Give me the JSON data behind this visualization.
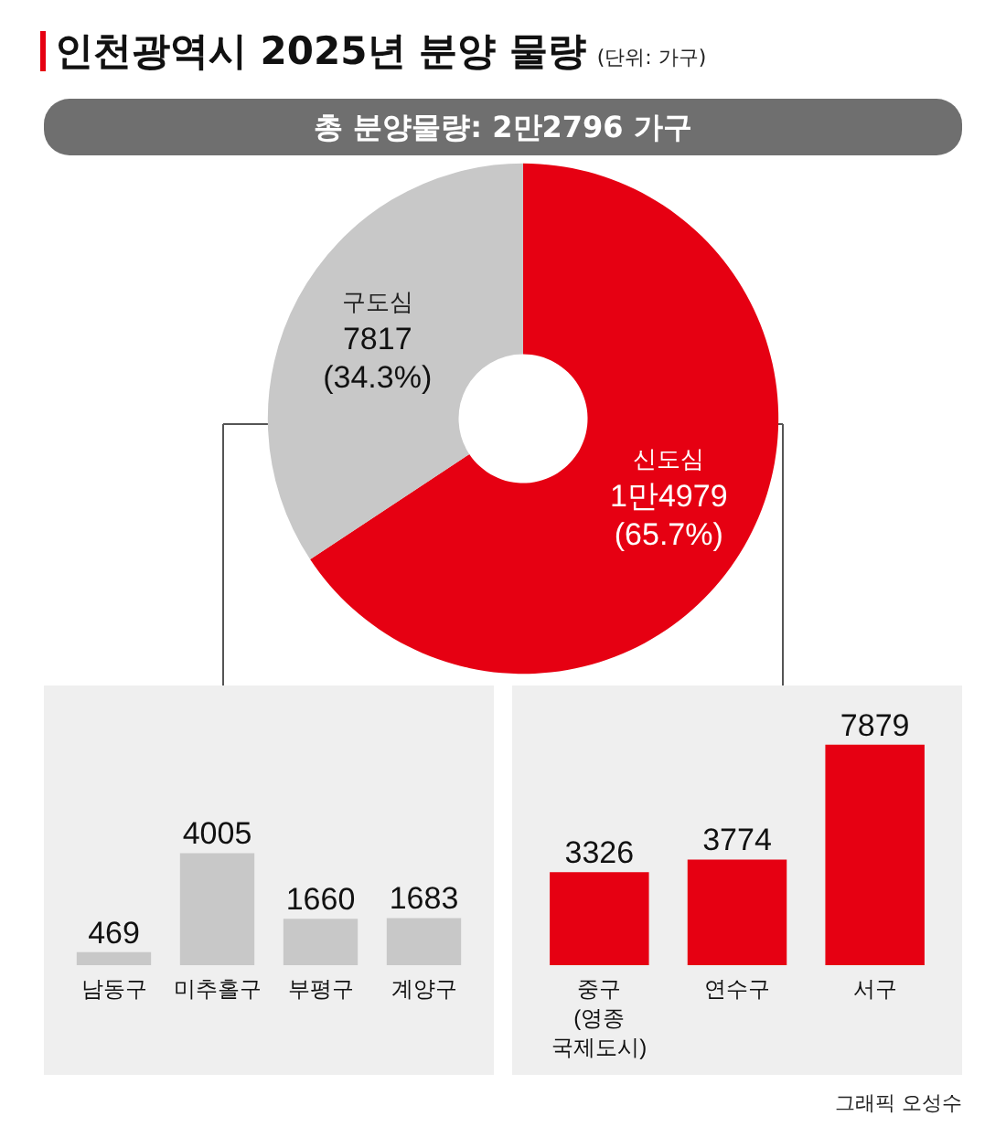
{
  "chart_data": [
    {
      "type": "donut",
      "title": "인천광역시 2025년 분양 물량",
      "subtitle": "(단위: 가구)",
      "annotations": [
        "총 분양물량: 2만2796 가구"
      ],
      "categories": [
        "신도심",
        "구도심"
      ],
      "values": [
        65.7,
        34.3
      ],
      "colors": [
        "#e60012",
        "#c8c8c8"
      ],
      "value_labels": [
        "1만4979\n(65.7%)",
        "7817\n(34.3%)"
      ],
      "legend": false
    },
    {
      "type": "bar",
      "categories": [
        "남동구",
        "미추홀구",
        "부평구",
        "계양구"
      ],
      "values": [
        469,
        4005,
        1660,
        1683
      ],
      "color": "#c8c8c8",
      "data_labels": true,
      "grid": false,
      "legend": false
    },
    {
      "type": "bar",
      "categories": [
        "중구\n(영종\n국제도시)",
        "연수구",
        "서구"
      ],
      "values": [
        3326,
        3774,
        7879
      ],
      "color": "#e60012",
      "data_labels": true,
      "grid": false,
      "legend": false,
      "annotations": [
        "그래픽 오성수"
      ]
    }
  ]
}
